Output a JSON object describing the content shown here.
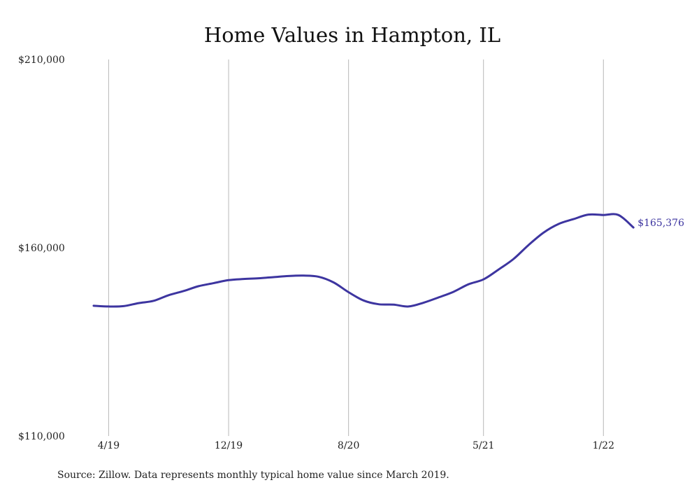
{
  "chart_data": {
    "type": "line",
    "title": "Home Values in Hampton, IL",
    "source_note": "Source: Zillow. Data represents monthly typical home value since March 2019.",
    "xlabel": "",
    "ylabel": "",
    "ylim": [
      110000,
      210000
    ],
    "y_ticks": [
      {
        "value": 210000,
        "label": "$210,000"
      },
      {
        "value": 160000,
        "label": "$160,000"
      },
      {
        "value": 110000,
        "label": "$110,000"
      }
    ],
    "x_ticks": [
      "4/19",
      "12/19",
      "8/20",
      "5/21",
      "1/22"
    ],
    "x": [
      "3/19",
      "4/19",
      "5/19",
      "6/19",
      "7/19",
      "8/19",
      "9/19",
      "10/19",
      "11/19",
      "12/19",
      "1/20",
      "2/20",
      "3/20",
      "4/20",
      "5/20",
      "6/20",
      "7/20",
      "8/20",
      "9/20",
      "10/20",
      "11/20",
      "12/20",
      "1/21",
      "2/21",
      "3/21",
      "4/21",
      "5/21",
      "6/21",
      "7/21",
      "8/21",
      "9/21",
      "10/21",
      "11/21",
      "12/21",
      "1/22",
      "2/22",
      "3/22"
    ],
    "grid": {
      "vertical": true,
      "horizontal": false
    },
    "line_color": "#3d35a0",
    "series": [
      {
        "values": [
          144600,
          144400,
          144500,
          145300,
          145900,
          147400,
          148500,
          149800,
          150600,
          151400,
          151700,
          151900,
          152200,
          152500,
          152600,
          152300,
          150800,
          148200,
          146000,
          145000,
          144900,
          144400,
          145400,
          146800,
          148300,
          150300,
          151600,
          154200,
          157000,
          160700,
          164000,
          166300,
          167600,
          168800,
          168700,
          168700,
          165376
        ],
        "end_label": "$165,376"
      }
    ]
  }
}
